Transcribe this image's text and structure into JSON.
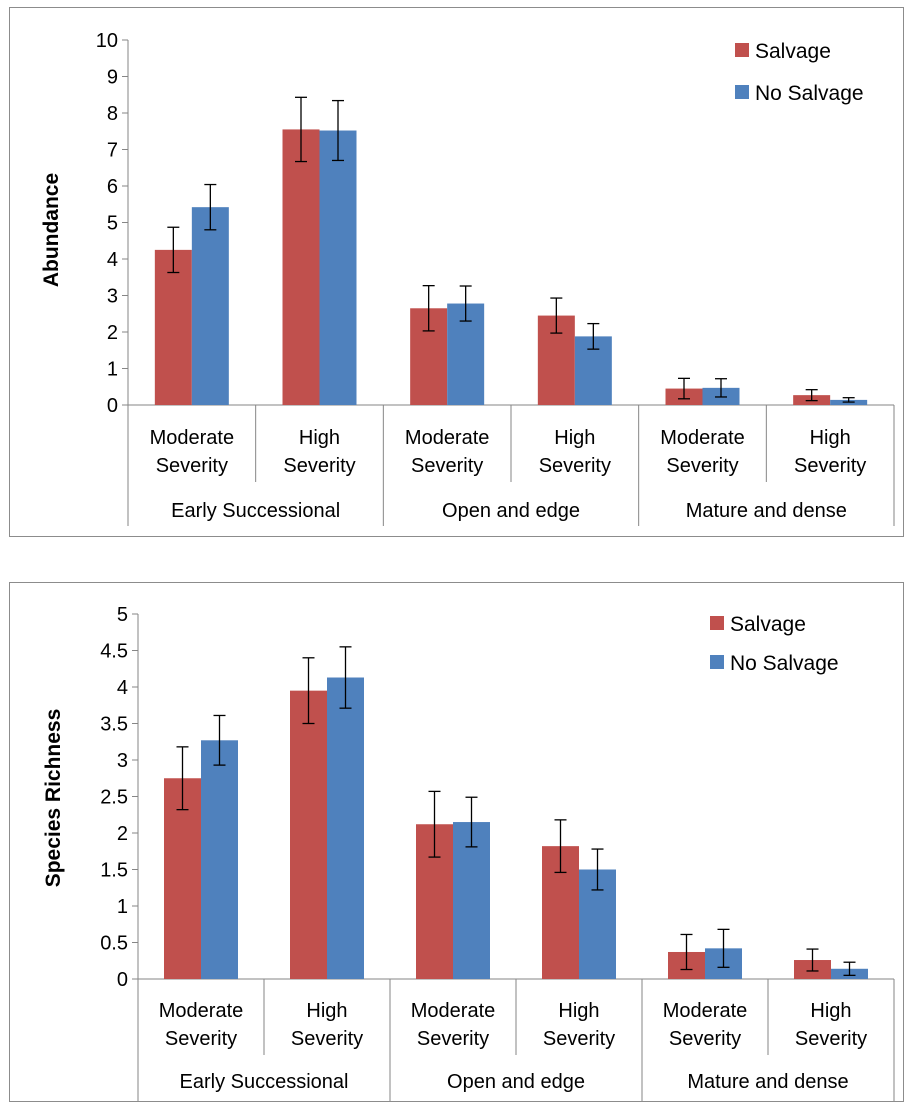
{
  "charts": [
    {
      "type": "bar",
      "title": "",
      "xlabel": "",
      "ylabel": "Abundance",
      "ylim": [
        0,
        10
      ],
      "yticks": [
        "0",
        "1",
        "2",
        "3",
        "4",
        "5",
        "6",
        "7",
        "8",
        "9",
        "10"
      ],
      "categories": [
        [
          "Moderate",
          "Severity"
        ],
        [
          "High",
          "Severity"
        ],
        [
          "Moderate",
          "Severity"
        ],
        [
          "High",
          "Severity"
        ],
        [
          "Moderate",
          "Severity"
        ],
        [
          "High",
          "Severity"
        ]
      ],
      "groups": [
        "Early Successional",
        "Open and edge",
        "Mature and dense"
      ],
      "series": [
        {
          "name": "Salvage",
          "color": "#c0504d",
          "values": [
            4.25,
            7.55,
            2.65,
            2.45,
            0.45,
            0.27
          ],
          "err": [
            0.62,
            0.88,
            0.62,
            0.48,
            0.28,
            0.15
          ]
        },
        {
          "name": "No Salvage",
          "color": "#4f81bd",
          "values": [
            5.42,
            7.52,
            2.78,
            1.88,
            0.47,
            0.14
          ],
          "err": [
            0.62,
            0.82,
            0.48,
            0.35,
            0.25,
            0.06
          ]
        }
      ],
      "legend": "top-right"
    },
    {
      "type": "bar",
      "title": "",
      "xlabel": "",
      "ylabel": "Species Richness",
      "ylim": [
        0,
        5
      ],
      "yticks": [
        "0",
        "0.5",
        "1",
        "1.5",
        "2",
        "2.5",
        "3",
        "3.5",
        "4",
        "4.5",
        "5"
      ],
      "categories": [
        [
          "Moderate",
          "Severity"
        ],
        [
          "High",
          "Severity"
        ],
        [
          "Moderate",
          "Severity"
        ],
        [
          "High",
          "Severity"
        ],
        [
          "Moderate",
          "Severity"
        ],
        [
          "High",
          "Severity"
        ]
      ],
      "groups": [
        "Early Successional",
        "Open and edge",
        "Mature and dense"
      ],
      "series": [
        {
          "name": "Salvage",
          "color": "#c0504d",
          "values": [
            2.75,
            3.95,
            2.12,
            1.82,
            0.37,
            0.26
          ],
          "err": [
            0.43,
            0.45,
            0.45,
            0.36,
            0.24,
            0.15
          ]
        },
        {
          "name": "No Salvage",
          "color": "#4f81bd",
          "values": [
            3.27,
            4.13,
            2.15,
            1.5,
            0.42,
            0.14
          ],
          "err": [
            0.34,
            0.42,
            0.34,
            0.28,
            0.26,
            0.09
          ]
        }
      ],
      "legend": "top-right"
    }
  ]
}
